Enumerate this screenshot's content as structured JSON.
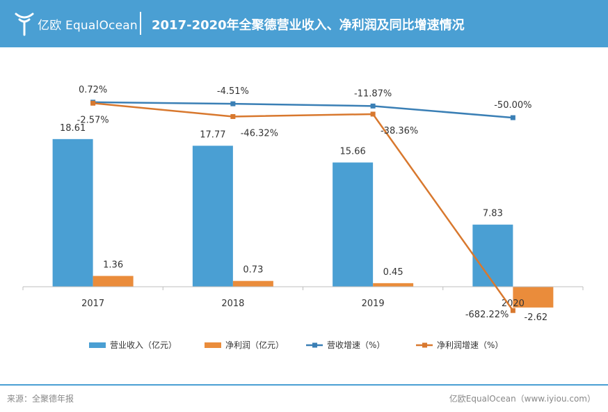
{
  "header": {
    "brand": "亿欧 EqualOcean",
    "title": "2017-2020年全聚德营业收入、净利润及同比增速情况"
  },
  "footer": {
    "source": "来源：全聚德年报",
    "credit": "亿欧EqualOcean（www.iyiou.com）"
  },
  "colors": {
    "header_bg": "#4a9fd3",
    "revenue": "#4a9fd3",
    "profit": "#ea8c3b",
    "revenue_growth": "#3a7fb5",
    "profit_growth": "#d8782e"
  },
  "chart_data": {
    "type": "bar",
    "categories": [
      "2017",
      "2018",
      "2019",
      "2020"
    ],
    "series": [
      {
        "name": "营业收入（亿元）",
        "kind": "bar",
        "values": [
          18.61,
          17.77,
          15.66,
          7.83
        ],
        "labels": [
          "18.61",
          "17.77",
          "15.66",
          "7.83"
        ]
      },
      {
        "name": "净利润（亿元）",
        "kind": "bar",
        "values": [
          1.36,
          0.73,
          0.45,
          -2.62
        ],
        "labels": [
          "1.36",
          "0.73",
          "0.45",
          "-2.62"
        ]
      },
      {
        "name": "营收增速（%）",
        "kind": "line",
        "values": [
          0.72,
          -4.51,
          -11.87,
          -50.0
        ],
        "labels": [
          "0.72%",
          "-4.51%",
          "-11.87%",
          "-50.00%"
        ]
      },
      {
        "name": "净利润增速（%）",
        "kind": "line",
        "values": [
          -2.57,
          -46.32,
          -38.36,
          -682.22
        ],
        "labels": [
          "-2.57%",
          "-46.32%",
          "-38.36%",
          "-682.22%"
        ]
      }
    ],
    "bar_axis": {
      "ylim": [
        -2.9,
        18.6
      ]
    },
    "line_axis": {
      "ylim": [
        -700,
        30
      ]
    },
    "legend_position": "bottom",
    "grid": false
  }
}
